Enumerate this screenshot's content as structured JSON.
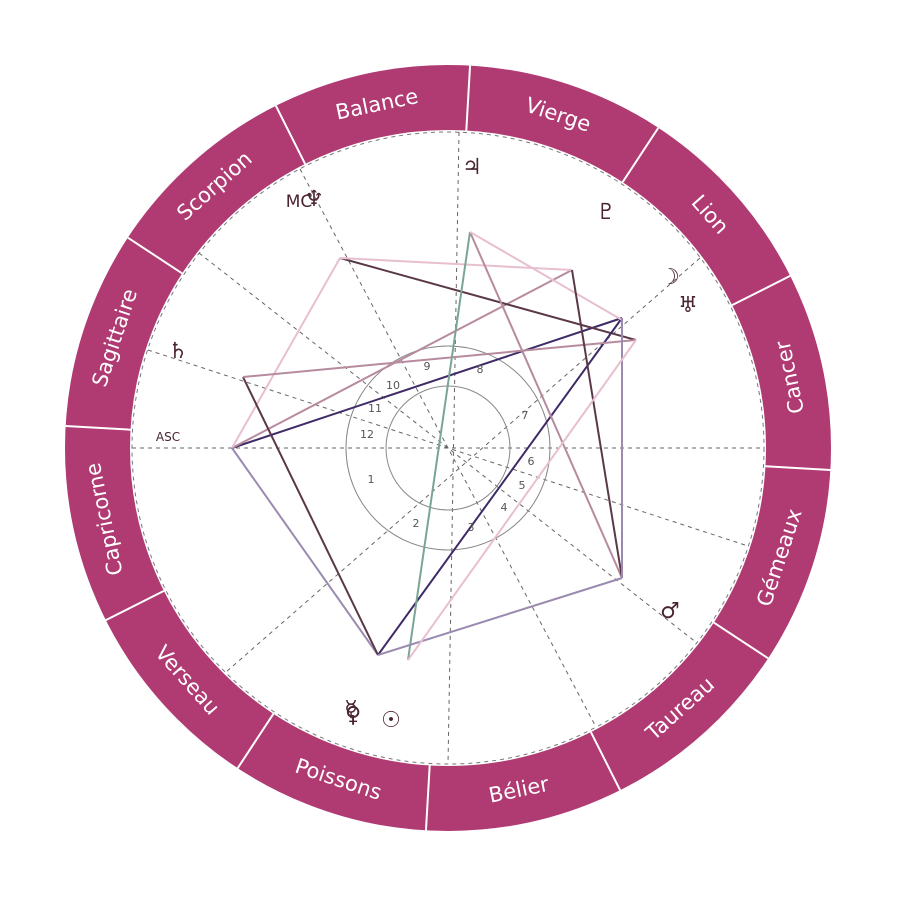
{
  "signs": [
    "Vierge",
    "Lion",
    "Cancer",
    "Gémeaux",
    "Taureau",
    "Bélier",
    "Poissons",
    "Verseau",
    "Capricorne",
    "Sagittaire",
    "Scorpion",
    "Balance"
  ],
  "houses": [
    "1",
    "2",
    "3",
    "4",
    "5",
    "6",
    "7",
    "8",
    "9",
    "10",
    "11",
    "12"
  ],
  "angles": {
    "asc": "ASC",
    "mc": "MC"
  },
  "planets": {
    "jupiter": "♃",
    "neptune": "♆",
    "pluto": "♇",
    "moon": "☽",
    "uranus": "♅",
    "saturn": "♄",
    "mars": "♂",
    "mercury": "☿",
    "venus": "♀",
    "sun": "☉"
  }
}
